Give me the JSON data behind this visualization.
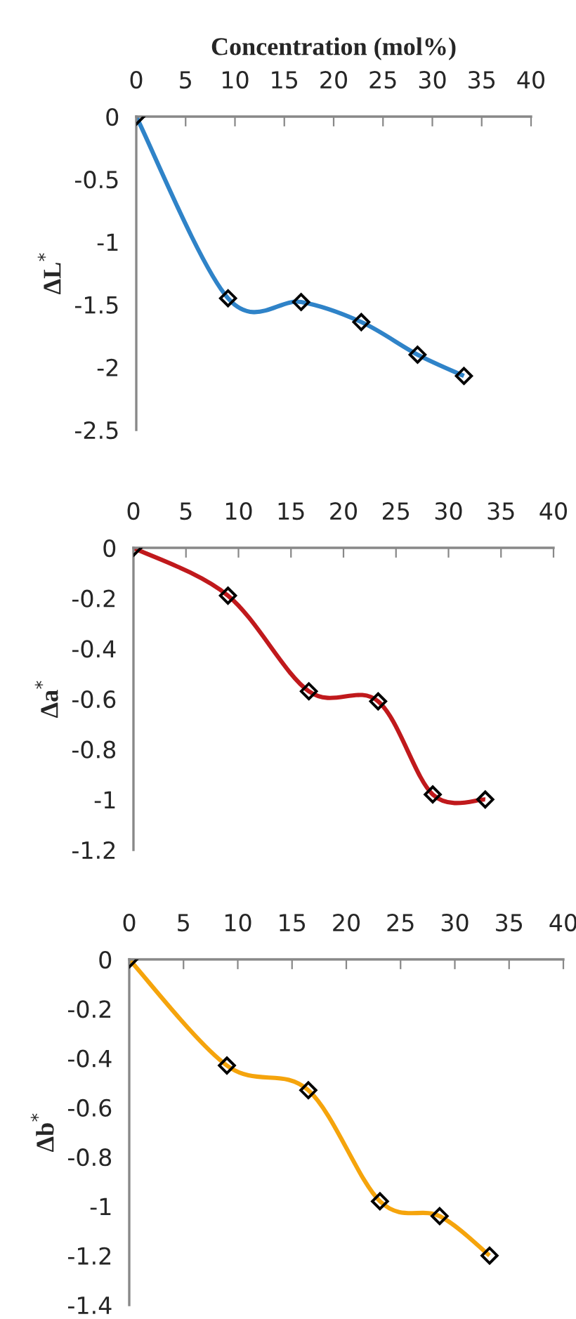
{
  "chart_data": [
    {
      "type": "line",
      "xlabel": "Concentration (mol%)",
      "ylabel": "ΔL$^{*}$",
      "marker": "diamond",
      "grid": false,
      "xlim": [
        0,
        40
      ],
      "xticks": [
        0,
        5,
        10,
        15,
        20,
        25,
        30,
        35,
        40
      ],
      "ylim": [
        -2.5,
        0
      ],
      "yticks": [
        0,
        -0.5,
        -1,
        -1.5,
        -2,
        -2.5
      ],
      "series": [
        {
          "color": "#2f83c8",
          "x": [
            0,
            9.3,
            16.7,
            22.8,
            28.5,
            33.2
          ],
          "values": [
            0,
            -1.45,
            -1.48,
            -1.64,
            -1.9,
            -2.07
          ]
        }
      ]
    },
    {
      "type": "line",
      "ylabel": "Δa$^{*}$",
      "marker": "diamond",
      "grid": false,
      "xlim": [
        0,
        40
      ],
      "xticks": [
        0,
        5,
        10,
        15,
        20,
        25,
        30,
        35,
        40
      ],
      "ylim": [
        -1.2,
        0
      ],
      "yticks": [
        0,
        -0.2,
        -0.4,
        -0.6,
        -0.8,
        -1,
        -1.2
      ],
      "series": [
        {
          "color": "#c0191c",
          "x": [
            0,
            9.0,
            16.7,
            23.3,
            28.5,
            33.5
          ],
          "values": [
            0,
            -0.19,
            -0.57,
            -0.61,
            -0.98,
            -1.0
          ]
        }
      ]
    },
    {
      "type": "line",
      "ylabel": "Δb$^{*}$",
      "marker": "diamond",
      "grid": false,
      "xlim": [
        0,
        40
      ],
      "xticks": [
        0,
        5,
        10,
        15,
        20,
        25,
        30,
        35,
        40
      ],
      "ylim": [
        -1.4,
        0
      ],
      "yticks": [
        0,
        -0.2,
        -0.4,
        -0.6,
        -0.8,
        -1,
        -1.2,
        -1.4
      ],
      "series": [
        {
          "color": "#f5a40c",
          "x": [
            0,
            9.0,
            16.5,
            23.1,
            28.6,
            33.2
          ],
          "values": [
            0,
            -0.43,
            -0.53,
            -0.98,
            -1.04,
            -1.2
          ]
        }
      ]
    }
  ]
}
